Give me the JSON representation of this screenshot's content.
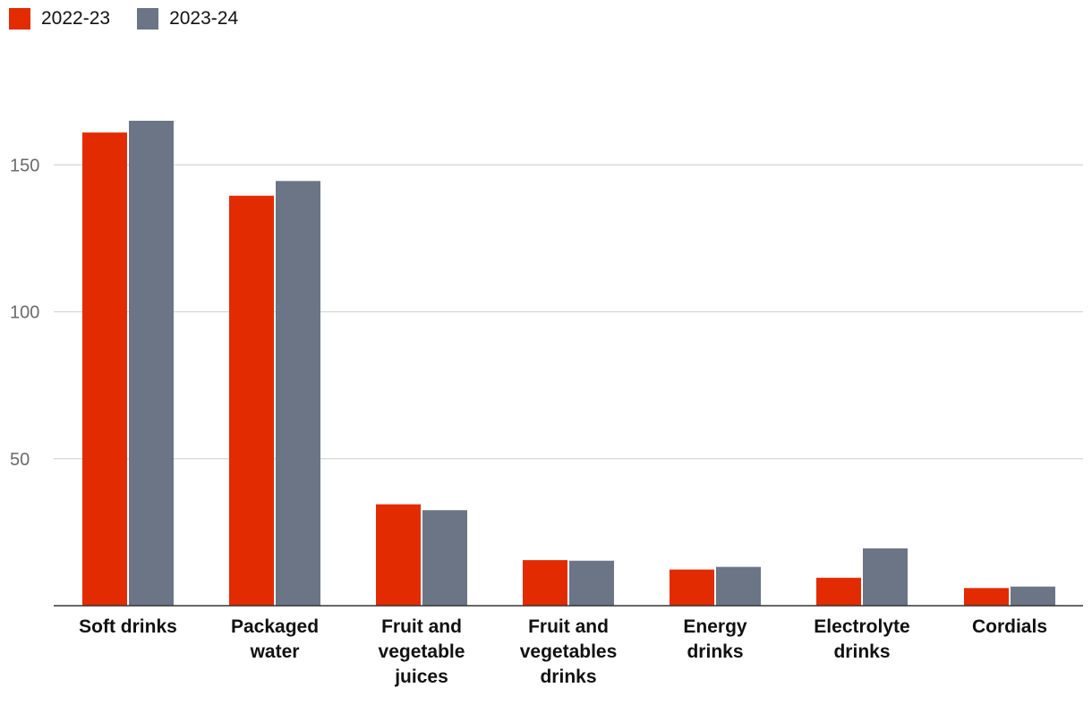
{
  "chart_data": {
    "type": "bar",
    "title": "",
    "xlabel": "",
    "ylabel": "",
    "ylim": [
      0,
      165
    ],
    "yticks": [
      50,
      100,
      150
    ],
    "grid": true,
    "legend_position": "top-left",
    "categories": [
      [
        "Soft drinks"
      ],
      [
        "Packaged",
        "water"
      ],
      [
        "Fruit and",
        "vegetable",
        "juices"
      ],
      [
        "Fruit and",
        "vegetables",
        "drinks"
      ],
      [
        "Energy",
        "drinks"
      ],
      [
        "Electrolyte",
        "drinks"
      ],
      [
        "Cordials"
      ]
    ],
    "series": [
      {
        "name": "2022-23",
        "color": "#e32b00",
        "values": [
          161,
          139.5,
          34.5,
          15.5,
          12.3,
          9.5,
          6
        ]
      },
      {
        "name": "2023-24",
        "color": "#6b7585",
        "values": [
          165,
          144.5,
          32.5,
          15.3,
          13.2,
          19.5,
          6.5
        ]
      }
    ]
  }
}
